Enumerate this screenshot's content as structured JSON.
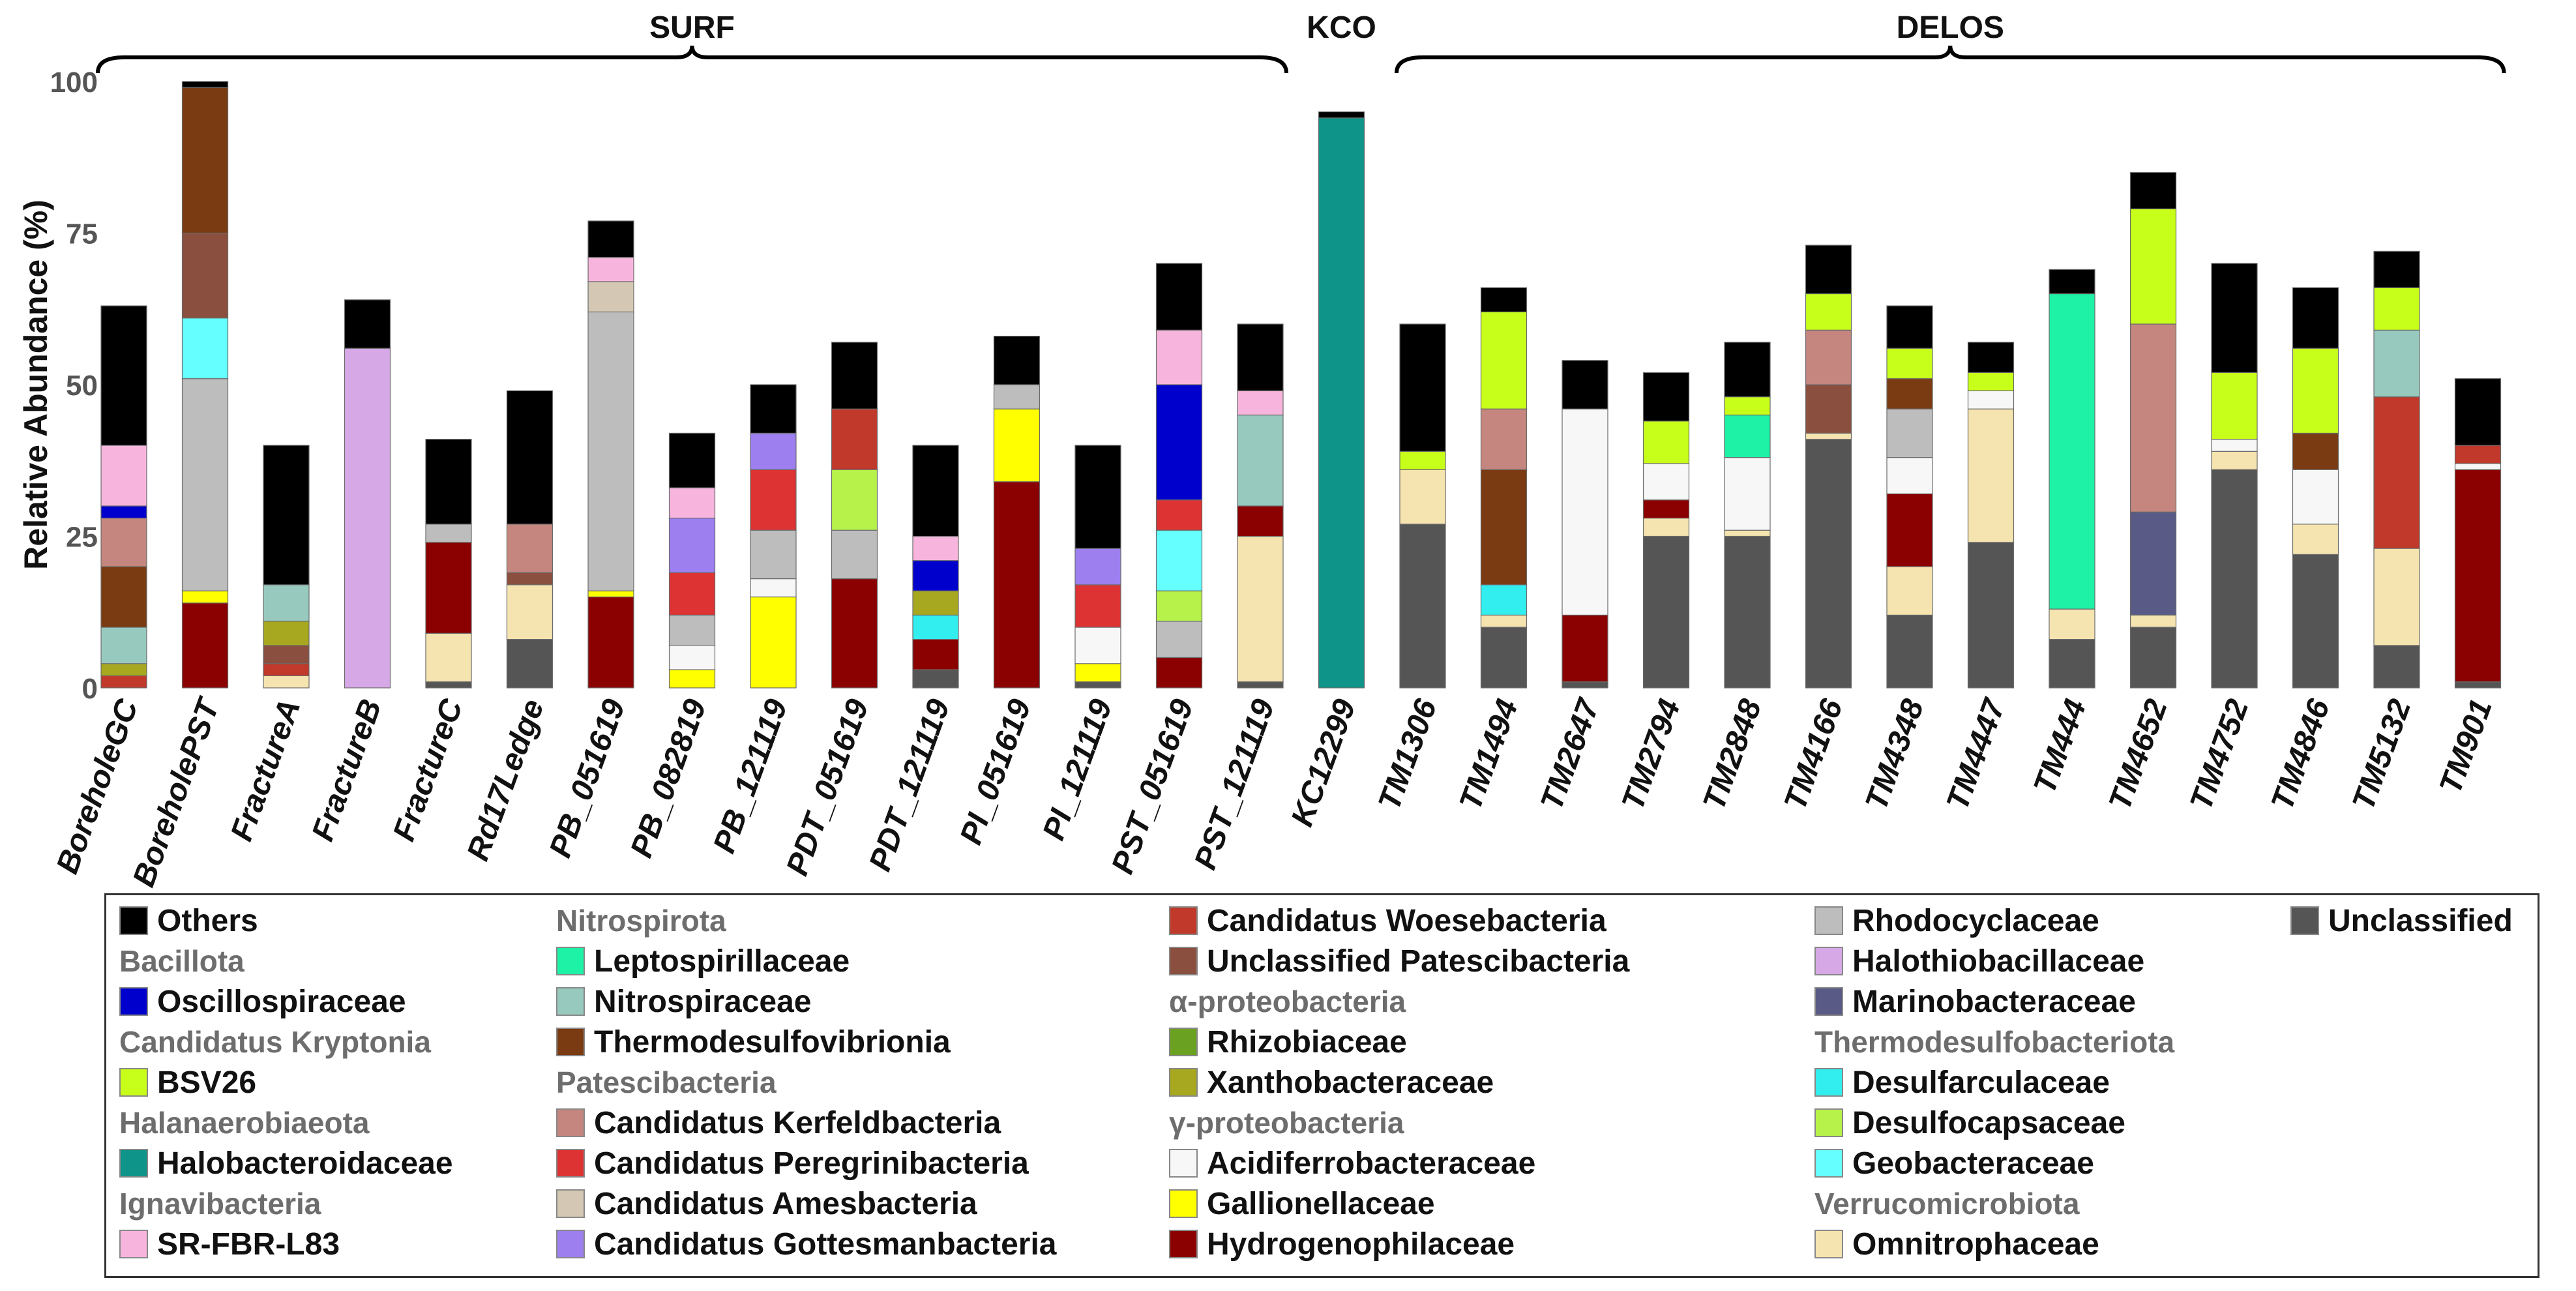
{
  "chart_data": {
    "type": "bar",
    "stacked": true,
    "ylabel": "Relative Abundance (%)",
    "ylim": [
      0,
      100
    ],
    "yticks": [
      0,
      25,
      50,
      75,
      100
    ],
    "site_groups": [
      {
        "name": "SURF",
        "from": "BoreholeGC",
        "to": "PST_121119"
      },
      {
        "name": "KCO",
        "from": "KC12299",
        "to": "KC12299"
      },
      {
        "name": "DELOS",
        "from": "TM1306",
        "to": "TM901"
      }
    ],
    "categories": [
      "BoreholeGC",
      "BoreholePST",
      "FractureA",
      "FractureB",
      "FractureC",
      "Rd17Ledge",
      "PB_051619",
      "PB_082819",
      "PB_121119",
      "PDT_051619",
      "PDT_121119",
      "PI_051619",
      "PI_121119",
      "PST_051619",
      "PST_121119",
      "KC12299",
      "TM1306",
      "TM1494",
      "TM2647",
      "TM2794",
      "TM2848",
      "TM4166",
      "TM4348",
      "TM4447",
      "TM444",
      "TM4652",
      "TM4752",
      "TM4846",
      "TM5132",
      "TM901"
    ],
    "series_colors": {
      "Unclassified": "#555555",
      "Omnitrophaceae": "#f5e4b0",
      "Hydrogenophilaceae": "#8b0000",
      "Gallionellaceae": "#ffff00",
      "Acidiferrobacteraceae": "#f7f7f7",
      "Rhodocyclaceae": "#bdbdbd",
      "Halothiobacillaceae": "#d6a8e6",
      "Marinobacteraceae": "#5a5a86",
      "Desulfarculaceae": "#33eeee",
      "Desulfocapsaceae": "#b7f24a",
      "Geobacteraceae": "#66ffff",
      "Candidatus Woesebacteria": "#c0392b",
      "Unclassified Patescibacteria": "#8a4f3f",
      "Rhizobiaceae": "#6aa121",
      "Xanthobacteraceae": "#a8a820",
      "Leptospirillaceae": "#1df2a6",
      "Nitrospiraceae": "#98c9be",
      "Thermodesulfovibrionia": "#7a3b12",
      "Candidatus Kerfeldbacteria": "#c4867e",
      "Candidatus Peregrinibacteria": "#dd3333",
      "Candidatus Amesbacteria": "#d4c8b4",
      "Candidatus Gottesmanbacteria": "#9d7ff0",
      "Oscillospiraceae": "#0000cc",
      "BSV26": "#c8ff1a",
      "Halobacteroidaceae": "#0e9488",
      "SR-FBR-L83": "#f7b5de",
      "Others": "#000000"
    },
    "series": [
      {
        "name": "Unclassified",
        "values": [
          0,
          0,
          0,
          0,
          1,
          8,
          0,
          0,
          0,
          0,
          3,
          0,
          1,
          0,
          1,
          0,
          27,
          10,
          1,
          25,
          25,
          41,
          12,
          24,
          8,
          10,
          36,
          22,
          7,
          1
        ]
      },
      {
        "name": "Omnitrophaceae",
        "values": [
          0,
          0,
          2,
          0,
          8,
          9,
          0,
          0,
          0,
          0,
          0,
          0,
          0,
          0,
          24,
          0,
          9,
          2,
          0,
          3,
          1,
          1,
          8,
          22,
          5,
          2,
          3,
          5,
          16,
          0
        ]
      },
      {
        "name": "Hydrogenophilaceae",
        "values": [
          0,
          14,
          0,
          0,
          15,
          0,
          15,
          0,
          0,
          18,
          5,
          34,
          0,
          5,
          5,
          0,
          0,
          0,
          11,
          3,
          0,
          0,
          12,
          0,
          0,
          0,
          0,
          0,
          0,
          35
        ]
      },
      {
        "name": "Gallionellaceae",
        "values": [
          0,
          2,
          0,
          0,
          0,
          0,
          1,
          3,
          15,
          0,
          0,
          12,
          3,
          0,
          0,
          0,
          0,
          0,
          0,
          0,
          0,
          0,
          0,
          0,
          0,
          0,
          0,
          0,
          0,
          0
        ]
      },
      {
        "name": "Acidiferrobacteraceae",
        "values": [
          0,
          0,
          0,
          0,
          0,
          0,
          0,
          4,
          3,
          0,
          0,
          0,
          6,
          0,
          0,
          0,
          0,
          0,
          34,
          6,
          12,
          0,
          6,
          3,
          0,
          0,
          2,
          9,
          0,
          1
        ]
      },
      {
        "name": "Rhodocyclaceae",
        "values": [
          0,
          35,
          0,
          0,
          3,
          0,
          46,
          5,
          8,
          8,
          0,
          4,
          0,
          6,
          0,
          0,
          0,
          0,
          0,
          0,
          0,
          0,
          8,
          0,
          0,
          0,
          0,
          0,
          0,
          0
        ]
      },
      {
        "name": "Halothiobacillaceae",
        "values": [
          0,
          0,
          0,
          56,
          0,
          0,
          0,
          0,
          0,
          0,
          0,
          0,
          0,
          0,
          0,
          0,
          0,
          0,
          0,
          0,
          0,
          0,
          0,
          0,
          0,
          0,
          0,
          0,
          0,
          0
        ]
      },
      {
        "name": "Marinobacteraceae",
        "values": [
          0,
          0,
          0,
          0,
          0,
          0,
          0,
          0,
          0,
          0,
          0,
          0,
          0,
          0,
          0,
          0,
          0,
          0,
          0,
          0,
          0,
          0,
          0,
          0,
          0,
          17,
          0,
          0,
          0,
          0
        ]
      },
      {
        "name": "Desulfarculaceae",
        "values": [
          0,
          0,
          0,
          0,
          0,
          0,
          0,
          0,
          0,
          0,
          4,
          0,
          0,
          0,
          0,
          0,
          0,
          5,
          0,
          0,
          0,
          0,
          0,
          0,
          0,
          0,
          0,
          0,
          0,
          0
        ]
      },
      {
        "name": "Desulfocapsaceae",
        "values": [
          0,
          0,
          0,
          0,
          0,
          0,
          0,
          0,
          0,
          10,
          0,
          0,
          0,
          5,
          0,
          0,
          0,
          0,
          0,
          0,
          0,
          0,
          0,
          0,
          0,
          0,
          0,
          0,
          0,
          0
        ]
      },
      {
        "name": "Geobacteraceae",
        "values": [
          0,
          10,
          0,
          0,
          0,
          0,
          0,
          0,
          0,
          0,
          0,
          0,
          0,
          10,
          0,
          0,
          0,
          0,
          0,
          0,
          0,
          0,
          0,
          0,
          0,
          0,
          0,
          0,
          0,
          0
        ]
      },
      {
        "name": "Candidatus Woesebacteria",
        "values": [
          2,
          0,
          2,
          0,
          0,
          0,
          0,
          0,
          0,
          10,
          0,
          0,
          0,
          0,
          0,
          0,
          0,
          0,
          0,
          0,
          0,
          0,
          0,
          0,
          0,
          0,
          0,
          0,
          25,
          3
        ]
      },
      {
        "name": "Unclassified Patescibacteria",
        "values": [
          0,
          14,
          3,
          0,
          0,
          2,
          0,
          0,
          0,
          0,
          0,
          0,
          0,
          0,
          0,
          0,
          0,
          0,
          0,
          0,
          0,
          8,
          0,
          0,
          0,
          0,
          0,
          0,
          0,
          0
        ]
      },
      {
        "name": "Rhizobiaceae",
        "values": [
          0,
          0,
          0,
          0,
          0,
          0,
          0,
          0,
          0,
          0,
          0,
          0,
          0,
          0,
          0,
          0,
          0,
          0,
          0,
          0,
          0,
          0,
          0,
          0,
          0,
          0,
          0,
          0,
          0,
          0
        ]
      },
      {
        "name": "Xanthobacteraceae",
        "values": [
          2,
          0,
          4,
          0,
          0,
          0,
          0,
          0,
          0,
          0,
          4,
          0,
          0,
          0,
          0,
          0,
          0,
          0,
          0,
          0,
          0,
          0,
          0,
          0,
          0,
          0,
          0,
          0,
          0,
          0
        ]
      },
      {
        "name": "Leptospirillaceae",
        "values": [
          0,
          0,
          0,
          0,
          0,
          0,
          0,
          0,
          0,
          0,
          0,
          0,
          0,
          0,
          0,
          0,
          0,
          0,
          0,
          0,
          7,
          0,
          0,
          0,
          52,
          0,
          0,
          0,
          0,
          0
        ]
      },
      {
        "name": "Nitrospiraceae",
        "values": [
          6,
          0,
          6,
          0,
          0,
          0,
          0,
          0,
          0,
          0,
          0,
          0,
          0,
          0,
          15,
          0,
          0,
          0,
          0,
          0,
          0,
          0,
          0,
          0,
          0,
          0,
          0,
          0,
          11,
          0
        ]
      },
      {
        "name": "Thermodesulfovibrionia",
        "values": [
          10,
          24,
          0,
          0,
          0,
          0,
          0,
          0,
          0,
          0,
          0,
          0,
          0,
          0,
          0,
          0,
          0,
          19,
          0,
          0,
          0,
          0,
          5,
          0,
          0,
          0,
          0,
          6,
          0,
          0
        ]
      },
      {
        "name": "Candidatus Kerfeldbacteria",
        "values": [
          8,
          0,
          0,
          0,
          0,
          8,
          0,
          0,
          0,
          0,
          0,
          0,
          0,
          0,
          0,
          0,
          0,
          10,
          0,
          0,
          0,
          9,
          0,
          0,
          0,
          31,
          0,
          0,
          0,
          0
        ]
      },
      {
        "name": "Candidatus Peregrinibacteria",
        "values": [
          0,
          0,
          0,
          0,
          0,
          0,
          0,
          7,
          10,
          0,
          0,
          0,
          7,
          5,
          0,
          0,
          0,
          0,
          0,
          0,
          0,
          0,
          0,
          0,
          0,
          0,
          0,
          0,
          0,
          0
        ]
      },
      {
        "name": "Candidatus Amesbacteria",
        "values": [
          0,
          0,
          0,
          0,
          0,
          0,
          5,
          0,
          0,
          0,
          0,
          0,
          0,
          0,
          0,
          0,
          0,
          0,
          0,
          0,
          0,
          0,
          0,
          0,
          0,
          0,
          0,
          0,
          0,
          0
        ]
      },
      {
        "name": "Candidatus Gottesmanbacteria",
        "values": [
          0,
          0,
          0,
          0,
          0,
          0,
          0,
          9,
          6,
          0,
          0,
          0,
          6,
          0,
          0,
          0,
          0,
          0,
          0,
          0,
          0,
          0,
          0,
          0,
          0,
          0,
          0,
          0,
          0,
          0
        ]
      },
      {
        "name": "Oscillospiraceae",
        "values": [
          2,
          0,
          0,
          0,
          0,
          0,
          0,
          0,
          0,
          0,
          5,
          0,
          0,
          19,
          0,
          0,
          0,
          0,
          0,
          0,
          0,
          0,
          0,
          0,
          0,
          0,
          0,
          0,
          0,
          0
        ]
      },
      {
        "name": "BSV26",
        "values": [
          0,
          0,
          0,
          0,
          0,
          0,
          0,
          0,
          0,
          0,
          0,
          0,
          0,
          0,
          0,
          0,
          3,
          16,
          0,
          7,
          3,
          6,
          5,
          3,
          0,
          19,
          11,
          14,
          7,
          0
        ]
      },
      {
        "name": "Halobacteroidaceae",
        "values": [
          0,
          0,
          0,
          0,
          0,
          0,
          0,
          0,
          0,
          0,
          0,
          0,
          0,
          0,
          0,
          94,
          0,
          0,
          0,
          0,
          0,
          0,
          0,
          0,
          0,
          0,
          0,
          0,
          0,
          0
        ]
      },
      {
        "name": "SR-FBR-L83",
        "values": [
          10,
          0,
          0,
          0,
          0,
          0,
          4,
          5,
          0,
          0,
          4,
          0,
          0,
          9,
          4,
          0,
          0,
          0,
          0,
          0,
          0,
          0,
          0,
          0,
          0,
          0,
          0,
          0,
          0,
          0
        ]
      },
      {
        "name": "Others",
        "values": [
          23,
          1,
          23,
          8,
          14,
          22,
          6,
          9,
          8,
          11,
          15,
          8,
          17,
          11,
          11,
          1,
          21,
          4,
          8,
          8,
          9,
          8,
          7,
          5,
          4,
          6,
          18,
          10,
          6,
          11
        ]
      }
    ],
    "legend": [
      {
        "column": 1,
        "entries": [
          {
            "kind": "item",
            "name": "Others"
          },
          {
            "kind": "group",
            "name": "Bacillota"
          },
          {
            "kind": "item",
            "name": "Oscillospiraceae"
          },
          {
            "kind": "group",
            "name": "Candidatus Kryptonia"
          },
          {
            "kind": "item",
            "name": "BSV26"
          },
          {
            "kind": "group",
            "name": "Halanaerobiaeota"
          },
          {
            "kind": "item",
            "name": "Halobacteroidaceae"
          },
          {
            "kind": "group",
            "name": "Ignavibacteria"
          },
          {
            "kind": "item",
            "name": "SR-FBR-L83"
          }
        ]
      },
      {
        "column": 2,
        "entries": [
          {
            "kind": "group",
            "name": "Nitrospirota"
          },
          {
            "kind": "item",
            "name": "Leptospirillaceae"
          },
          {
            "kind": "item",
            "name": "Nitrospiraceae"
          },
          {
            "kind": "item",
            "name": "Thermodesulfovibrionia"
          },
          {
            "kind": "group",
            "name": "Patescibacteria"
          },
          {
            "kind": "item",
            "name": "Candidatus Kerfeldbacteria"
          },
          {
            "kind": "item",
            "name": "Candidatus Peregrinibacteria"
          },
          {
            "kind": "item",
            "name": "Candidatus Amesbacteria"
          },
          {
            "kind": "item",
            "name": "Candidatus Gottesmanbacteria"
          }
        ]
      },
      {
        "column": 3,
        "entries": [
          {
            "kind": "item",
            "name": "Candidatus Woesebacteria"
          },
          {
            "kind": "item",
            "name": "Unclassified Patescibacteria"
          },
          {
            "kind": "group",
            "name": "α-proteobacteria"
          },
          {
            "kind": "item",
            "name": "Rhizobiaceae"
          },
          {
            "kind": "item",
            "name": "Xanthobacteraceae"
          },
          {
            "kind": "group",
            "name": "γ-proteobacteria"
          },
          {
            "kind": "item",
            "name": "Acidiferrobacteraceae"
          },
          {
            "kind": "item",
            "name": "Gallionellaceae"
          },
          {
            "kind": "item",
            "name": "Hydrogenophilaceae"
          }
        ]
      },
      {
        "column": 4,
        "entries": [
          {
            "kind": "item",
            "name": "Rhodocyclaceae"
          },
          {
            "kind": "item",
            "name": "Halothiobacillaceae"
          },
          {
            "kind": "item",
            "name": "Marinobacteraceae"
          },
          {
            "kind": "group",
            "name": "Thermodesulfobacteriota"
          },
          {
            "kind": "item",
            "name": "Desulfarculaceae"
          },
          {
            "kind": "item",
            "name": "Desulfocapsaceae"
          },
          {
            "kind": "item",
            "name": "Geobacteraceae"
          },
          {
            "kind": "group",
            "name": "Verrucomicrobiota"
          },
          {
            "kind": "item",
            "name": "Omnitrophaceae"
          }
        ]
      },
      {
        "column": 5,
        "entries": [
          {
            "kind": "item",
            "name": "Unclassified"
          }
        ]
      }
    ]
  }
}
